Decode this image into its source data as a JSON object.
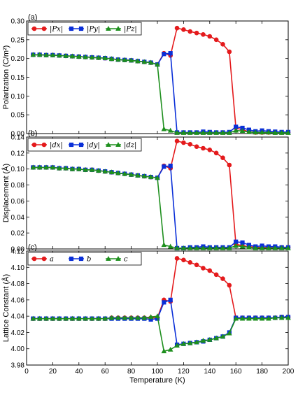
{
  "chart_data": [
    {
      "type": "line",
      "panel_tag": "(a)",
      "ylabel": "Polarization (C/m²)",
      "xlim": [
        0,
        200
      ],
      "ylim": [
        0,
        0.3
      ],
      "yticks": [
        "0.00",
        "0.05",
        "0.10",
        "0.15",
        "0.20",
        "0.25",
        "0.30"
      ],
      "legend": "top-left",
      "series": [
        {
          "name": "|Px|",
          "color": "#e41a1c",
          "marker": "circle",
          "x": [
            5,
            10,
            15,
            20,
            25,
            30,
            35,
            40,
            45,
            50,
            55,
            60,
            65,
            70,
            75,
            80,
            85,
            90,
            95,
            100,
            105,
            110,
            115,
            120,
            125,
            130,
            135,
            140,
            145,
            150,
            155,
            160,
            165,
            170,
            175,
            180,
            185,
            190,
            195,
            200
          ],
          "y": [
            0.21,
            0.21,
            0.209,
            0.209,
            0.208,
            0.207,
            0.206,
            0.205,
            0.204,
            0.203,
            0.202,
            0.201,
            0.199,
            0.197,
            0.196,
            0.195,
            0.193,
            0.191,
            0.189,
            0.184,
            0.214,
            0.208,
            0.281,
            0.277,
            0.272,
            0.268,
            0.264,
            0.259,
            0.25,
            0.238,
            0.218,
            0.015,
            0.01,
            0.005,
            0.003,
            0.003,
            0.003,
            0.003,
            0.003,
            0.003
          ]
        },
        {
          "name": "|Py|",
          "color": "#0a2fd8",
          "marker": "square",
          "x": [
            5,
            10,
            15,
            20,
            25,
            30,
            35,
            40,
            45,
            50,
            55,
            60,
            65,
            70,
            75,
            80,
            85,
            90,
            95,
            100,
            105,
            110,
            115,
            120,
            125,
            130,
            135,
            140,
            145,
            150,
            155,
            160,
            165,
            170,
            175,
            180,
            185,
            190,
            195,
            200
          ],
          "y": [
            0.21,
            0.21,
            0.209,
            0.209,
            0.208,
            0.207,
            0.206,
            0.205,
            0.204,
            0.203,
            0.202,
            0.201,
            0.199,
            0.197,
            0.196,
            0.195,
            0.193,
            0.191,
            0.189,
            0.184,
            0.212,
            0.214,
            0.003,
            0.003,
            0.003,
            0.003,
            0.005,
            0.004,
            0.003,
            0.003,
            0.004,
            0.018,
            0.015,
            0.01,
            0.006,
            0.008,
            0.006,
            0.005,
            0.004,
            0.004
          ]
        },
        {
          "name": "|Pz|",
          "color": "#1e8f1e",
          "marker": "triangle",
          "x": [
            5,
            10,
            15,
            20,
            25,
            30,
            35,
            40,
            45,
            50,
            55,
            60,
            65,
            70,
            75,
            80,
            85,
            90,
            95,
            100,
            105,
            110,
            115,
            120,
            125,
            130,
            135,
            140,
            145,
            150,
            155,
            160,
            165,
            170,
            175,
            180,
            185,
            190,
            195,
            200
          ],
          "y": [
            0.21,
            0.21,
            0.209,
            0.209,
            0.208,
            0.207,
            0.206,
            0.205,
            0.204,
            0.203,
            0.202,
            0.201,
            0.199,
            0.197,
            0.196,
            0.195,
            0.193,
            0.191,
            0.189,
            0.184,
            0.012,
            0.008,
            0.002,
            0.002,
            0.002,
            0.002,
            0.002,
            0.002,
            0.002,
            0.002,
            0.002,
            0.008,
            0.007,
            0.004,
            0.003,
            0.003,
            0.003,
            0.002,
            0.002,
            0.002
          ]
        }
      ]
    },
    {
      "type": "line",
      "panel_tag": "(b)",
      "ylabel": "Displacement (Å)",
      "xlim": [
        0,
        200
      ],
      "ylim": [
        0,
        0.14
      ],
      "yticks": [
        "0.00",
        "0.02",
        "0.04",
        "0.06",
        "0.08",
        "0.10",
        "0.12",
        "0.14"
      ],
      "legend": "top-left",
      "series": [
        {
          "name": "|dx|",
          "color": "#e41a1c",
          "marker": "circle",
          "x": [
            5,
            10,
            15,
            20,
            25,
            30,
            35,
            40,
            45,
            50,
            55,
            60,
            65,
            70,
            75,
            80,
            85,
            90,
            95,
            100,
            105,
            110,
            115,
            120,
            125,
            130,
            135,
            140,
            145,
            150,
            155,
            160,
            165,
            170,
            175,
            180,
            185,
            190,
            195,
            200
          ],
          "y": [
            0.102,
            0.102,
            0.102,
            0.102,
            0.101,
            0.101,
            0.1,
            0.1,
            0.099,
            0.099,
            0.098,
            0.097,
            0.096,
            0.095,
            0.094,
            0.093,
            0.092,
            0.091,
            0.09,
            0.089,
            0.104,
            0.101,
            0.135,
            0.133,
            0.131,
            0.128,
            0.126,
            0.124,
            0.12,
            0.114,
            0.105,
            0.006,
            0.004,
            0.003,
            0.002,
            0.002,
            0.002,
            0.002,
            0.002,
            0.002
          ]
        },
        {
          "name": "|dy|",
          "color": "#0a2fd8",
          "marker": "square",
          "x": [
            5,
            10,
            15,
            20,
            25,
            30,
            35,
            40,
            45,
            50,
            55,
            60,
            65,
            70,
            75,
            80,
            85,
            90,
            95,
            100,
            105,
            110,
            115,
            120,
            125,
            130,
            135,
            140,
            145,
            150,
            155,
            160,
            165,
            170,
            175,
            180,
            185,
            190,
            195,
            200
          ],
          "y": [
            0.102,
            0.102,
            0.102,
            0.102,
            0.101,
            0.101,
            0.1,
            0.1,
            0.099,
            0.099,
            0.098,
            0.097,
            0.096,
            0.095,
            0.094,
            0.093,
            0.092,
            0.091,
            0.09,
            0.089,
            0.103,
            0.104,
            0.001,
            0.001,
            0.002,
            0.002,
            0.003,
            0.002,
            0.002,
            0.002,
            0.002,
            0.009,
            0.008,
            0.005,
            0.003,
            0.004,
            0.003,
            0.003,
            0.002,
            0.002
          ]
        },
        {
          "name": "|dz|",
          "color": "#1e8f1e",
          "marker": "triangle",
          "x": [
            5,
            10,
            15,
            20,
            25,
            30,
            35,
            40,
            45,
            50,
            55,
            60,
            65,
            70,
            75,
            80,
            85,
            90,
            95,
            100,
            105,
            110,
            115,
            120,
            125,
            130,
            135,
            140,
            145,
            150,
            155,
            160,
            165,
            170,
            175,
            180,
            185,
            190,
            195,
            200
          ],
          "y": [
            0.102,
            0.102,
            0.102,
            0.102,
            0.101,
            0.101,
            0.1,
            0.1,
            0.099,
            0.099,
            0.098,
            0.097,
            0.096,
            0.095,
            0.094,
            0.093,
            0.092,
            0.091,
            0.09,
            0.089,
            0.005,
            0.003,
            0.001,
            0.001,
            0.001,
            0.001,
            0.001,
            0.001,
            0.001,
            0.001,
            0.001,
            0.004,
            0.003,
            0.002,
            0.001,
            0.001,
            0.001,
            0.001,
            0.001,
            0.001
          ]
        }
      ]
    },
    {
      "type": "line",
      "panel_tag": "(c)",
      "ylabel": "Lattice Constant (Å)",
      "xlabel": "Temperature (K)",
      "xlim": [
        0,
        200
      ],
      "ylim": [
        3.98,
        4.12
      ],
      "yticks": [
        "3.98",
        "4.00",
        "4.02",
        "4.04",
        "4.06",
        "4.08",
        "4.10",
        "4.12"
      ],
      "xticks": [
        "0",
        "20",
        "40",
        "60",
        "80",
        "100",
        "120",
        "140",
        "160",
        "180",
        "200"
      ],
      "legend": "top-left",
      "series": [
        {
          "name": "a",
          "color": "#e41a1c",
          "marker": "circle",
          "x": [
            5,
            10,
            15,
            20,
            25,
            30,
            35,
            40,
            45,
            50,
            55,
            60,
            65,
            70,
            75,
            80,
            85,
            90,
            95,
            100,
            105,
            110,
            115,
            120,
            125,
            130,
            135,
            140,
            145,
            150,
            155,
            160,
            165,
            170,
            175,
            180,
            185,
            190,
            195,
            200
          ],
          "y": [
            4.037,
            4.037,
            4.037,
            4.037,
            4.037,
            4.037,
            4.037,
            4.037,
            4.037,
            4.037,
            4.037,
            4.037,
            4.038,
            4.038,
            4.038,
            4.038,
            4.038,
            4.038,
            4.038,
            4.038,
            4.06,
            4.058,
            4.111,
            4.109,
            4.106,
            4.103,
            4.099,
            4.096,
            4.091,
            4.086,
            4.078,
            4.038,
            4.038,
            4.038,
            4.038,
            4.038,
            4.038,
            4.038,
            4.039,
            4.039
          ]
        },
        {
          "name": "b",
          "color": "#0a2fd8",
          "marker": "square",
          "x": [
            5,
            10,
            15,
            20,
            25,
            30,
            35,
            40,
            45,
            50,
            55,
            60,
            65,
            70,
            75,
            80,
            85,
            90,
            95,
            100,
            105,
            110,
            115,
            120,
            125,
            130,
            135,
            140,
            145,
            150,
            155,
            160,
            165,
            170,
            175,
            180,
            185,
            190,
            195,
            200
          ],
          "y": [
            4.037,
            4.037,
            4.037,
            4.037,
            4.037,
            4.037,
            4.037,
            4.037,
            4.037,
            4.037,
            4.037,
            4.037,
            4.037,
            4.037,
            4.037,
            4.037,
            4.037,
            4.037,
            4.036,
            4.037,
            4.057,
            4.06,
            4.005,
            4.006,
            4.007,
            4.008,
            4.009,
            4.011,
            4.013,
            4.015,
            4.02,
            4.038,
            4.038,
            4.038,
            4.038,
            4.038,
            4.038,
            4.038,
            4.039,
            4.039
          ]
        },
        {
          "name": "c",
          "color": "#1e8f1e",
          "marker": "triangle",
          "x": [
            5,
            10,
            15,
            20,
            25,
            30,
            35,
            40,
            45,
            50,
            55,
            60,
            65,
            70,
            75,
            80,
            85,
            90,
            95,
            100,
            105,
            110,
            115,
            120,
            125,
            130,
            135,
            140,
            145,
            150,
            155,
            160,
            165,
            170,
            175,
            180,
            185,
            190,
            195,
            200
          ],
          "y": [
            4.037,
            4.037,
            4.037,
            4.037,
            4.037,
            4.037,
            4.037,
            4.037,
            4.037,
            4.037,
            4.037,
            4.037,
            4.038,
            4.038,
            4.038,
            4.038,
            4.038,
            4.038,
            4.039,
            4.04,
            3.997,
            3.999,
            4.004,
            4.006,
            4.007,
            4.008,
            4.01,
            4.011,
            4.013,
            4.015,
            4.019,
            4.037,
            4.037,
            4.037,
            4.037,
            4.037,
            4.037,
            4.038,
            4.038,
            4.038
          ]
        }
      ]
    }
  ]
}
